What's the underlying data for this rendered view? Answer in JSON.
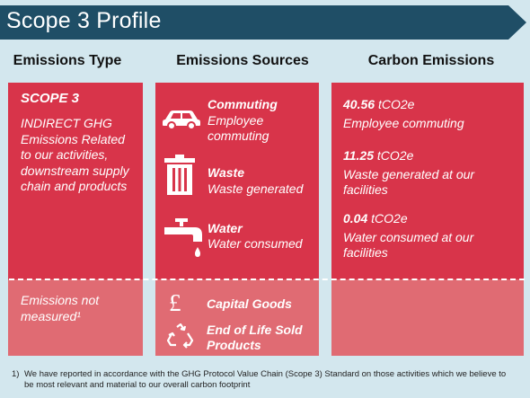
{
  "title": "Scope 3 Profile",
  "columns": {
    "type": "Emissions Type",
    "sources": "Emissions Sources",
    "carbon": "Carbon Emissions"
  },
  "scope": {
    "title": "SCOPE 3",
    "description": "INDIRECT GHG Emissions Related to our activities, downstream supply chain and products",
    "not_measured": "Emissions not measured¹"
  },
  "sources": [
    {
      "title": "Commuting",
      "subtitle": "Employee commuting",
      "icon": "car-icon"
    },
    {
      "title": "Waste",
      "subtitle": "Waste generated",
      "icon": "trash-bin-icon"
    },
    {
      "title": "Water",
      "subtitle": "Water consumed",
      "icon": "water-tap-icon"
    }
  ],
  "unmeasured_sources": [
    {
      "label": "Capital Goods",
      "icon": "pound-sign-icon"
    },
    {
      "label": "End of Life Sold Products",
      "icon": "recycle-icon"
    }
  ],
  "emissions": [
    {
      "value": "40.56",
      "unit": "tCO2e",
      "description": "Employee commuting"
    },
    {
      "value": "11.25",
      "unit": "tCO2e",
      "description": "Waste generated at our facilities"
    },
    {
      "value": "0.04",
      "unit": "tCO2e",
      "description": "Water consumed at our facilities"
    }
  ],
  "footnote": {
    "number": "1)",
    "text": "We have reported in accordance with the GHG Protocol Value Chain (Scope 3) Standard on those activities which we believe to be most relevant and material to our overall carbon footprint"
  },
  "colors": {
    "banner": "#1f4e66",
    "red": "#d8344a",
    "pink": "#e06b73",
    "background": "#d3e7ee"
  }
}
